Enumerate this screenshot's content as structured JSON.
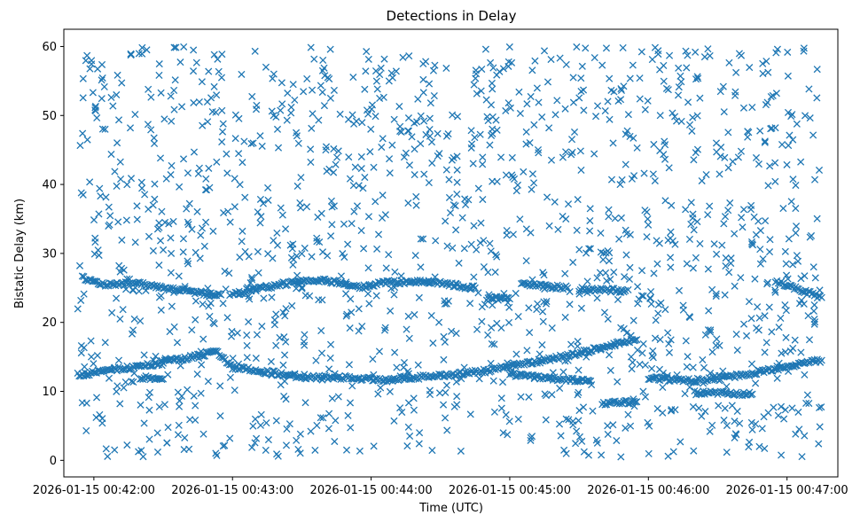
{
  "chart_data": {
    "type": "scatter",
    "title": "Detections in Delay",
    "xlabel": "Time (UTC)",
    "ylabel": "Bistatic Delay (km)",
    "marker": "x",
    "color": "#1f77b4",
    "grid": false,
    "legend": "none",
    "xlim": [
      "2026-01-15 00:41:47",
      "2026-01-15 00:47:22"
    ],
    "ylim": [
      -2.4,
      62.5
    ],
    "xticks": [
      "2026-01-15 00:42:00",
      "2026-01-15 00:43:00",
      "2026-01-15 00:44:00",
      "2026-01-15 00:45:00",
      "2026-01-15 00:46:00",
      "2026-01-15 00:47:00"
    ],
    "yticks": [
      0,
      10,
      20,
      30,
      40,
      50,
      60
    ],
    "x_range": [
      "2026-01-15 00:41:53",
      "2026-01-15 00:47:15"
    ],
    "y_range": [
      0.5,
      60
    ],
    "tracks": [
      {
        "points": [
          [
            "2026-01-15 00:41:53",
            12.4
          ],
          [
            "2026-01-15 00:42:10",
            13.2
          ],
          [
            "2026-01-15 00:42:30",
            14.2
          ],
          [
            "2026-01-15 00:42:53",
            15.7
          ],
          [
            "2026-01-15 00:43:00",
            13.5
          ],
          [
            "2026-01-15 00:43:15",
            12.8
          ],
          [
            "2026-01-15 00:43:30",
            12.1
          ],
          [
            "2026-01-15 00:43:50",
            12.0
          ],
          [
            "2026-01-15 00:44:05",
            11.6
          ],
          [
            "2026-01-15 00:44:30",
            12.3
          ],
          [
            "2026-01-15 00:44:50",
            13.0
          ],
          [
            "2026-01-15 00:45:10",
            14.2
          ],
          [
            "2026-01-15 00:45:30",
            15.5
          ],
          [
            "2026-01-15 00:45:45",
            16.8
          ],
          [
            "2026-01-15 00:45:55",
            17.5
          ]
        ]
      },
      {
        "points": [
          [
            "2026-01-15 00:45:00",
            12.5
          ],
          [
            "2026-01-15 00:45:20",
            11.8
          ],
          [
            "2026-01-15 00:45:35",
            11.5
          ]
        ]
      },
      {
        "points": [
          [
            "2026-01-15 00:45:40",
            8.2
          ],
          [
            "2026-01-15 00:45:55",
            8.5
          ]
        ]
      },
      {
        "points": [
          [
            "2026-01-15 00:46:00",
            12.0
          ],
          [
            "2026-01-15 00:46:15",
            11.5
          ],
          [
            "2026-01-15 00:46:30",
            11.8
          ],
          [
            "2026-01-15 00:46:45",
            12.6
          ],
          [
            "2026-01-15 00:47:00",
            13.6
          ],
          [
            "2026-01-15 00:47:15",
            14.5
          ]
        ]
      },
      {
        "points": [
          [
            "2026-01-15 00:42:20",
            12.0
          ],
          [
            "2026-01-15 00:42:30",
            11.8
          ]
        ]
      },
      {
        "points": [
          [
            "2026-01-15 00:46:20",
            9.8
          ],
          [
            "2026-01-15 00:46:45",
            9.6
          ]
        ]
      },
      {
        "points": [
          [
            "2026-01-15 00:41:55",
            26.5
          ],
          [
            "2026-01-15 00:42:05",
            25.5
          ],
          [
            "2026-01-15 00:42:20",
            25.6
          ],
          [
            "2026-01-15 00:42:45",
            24.3
          ],
          [
            "2026-01-15 00:42:55",
            24.0
          ]
        ]
      },
      {
        "points": [
          [
            "2026-01-15 00:43:00",
            24.0
          ],
          [
            "2026-01-15 00:43:20",
            25.5
          ],
          [
            "2026-01-15 00:43:40",
            26.2
          ],
          [
            "2026-01-15 00:43:55",
            25.0
          ],
          [
            "2026-01-15 00:44:05",
            25.8
          ],
          [
            "2026-01-15 00:44:25",
            25.9
          ],
          [
            "2026-01-15 00:44:45",
            25.0
          ]
        ]
      },
      {
        "points": [
          [
            "2026-01-15 00:44:50",
            23.5
          ],
          [
            "2026-01-15 00:45:00",
            23.4
          ]
        ]
      },
      {
        "points": [
          [
            "2026-01-15 00:45:05",
            25.5
          ],
          [
            "2026-01-15 00:45:25",
            25.0
          ]
        ]
      },
      {
        "points": [
          [
            "2026-01-15 00:45:30",
            24.8
          ],
          [
            "2026-01-15 00:45:50",
            24.6
          ]
        ]
      },
      {
        "points": [
          [
            "2026-01-15 00:46:55",
            26.0
          ],
          [
            "2026-01-15 00:47:05",
            24.8
          ],
          [
            "2026-01-15 00:47:15",
            23.6
          ]
        ]
      }
    ]
  }
}
